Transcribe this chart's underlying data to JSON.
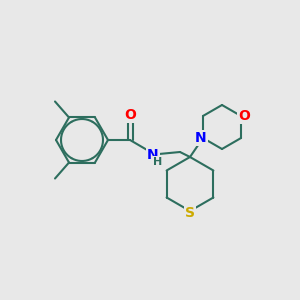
{
  "background_color": "#e8e8e8",
  "bond_color": "#2d6e5e",
  "atom_colors": {
    "O": "#ff0000",
    "N": "#0000ff",
    "S": "#ccaa00",
    "C": "#2d6e5e"
  },
  "figsize": [
    3.0,
    3.0
  ],
  "dpi": 100,
  "lw": 1.5
}
